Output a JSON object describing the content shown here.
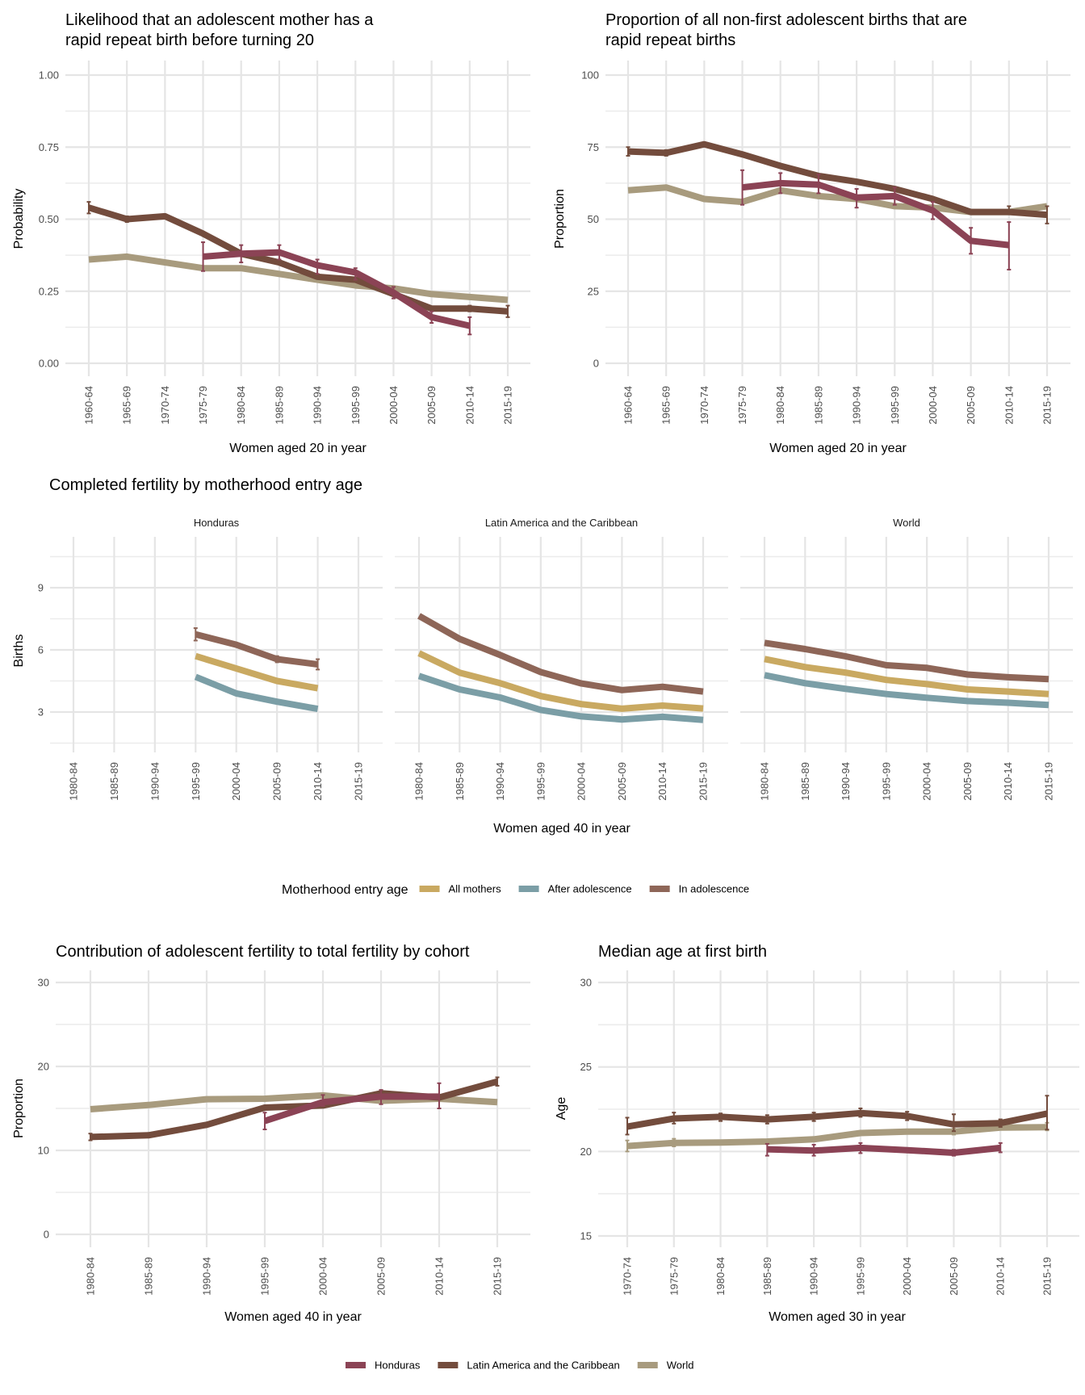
{
  "colors": {
    "Honduras": "#8b4355",
    "Latin America and the Caribbean": "#734c3d",
    "World": "#a89b7e",
    "All mothers": "#c9a961",
    "After adolescence": "#7b9ea6",
    "In adolescence": "#8e6658"
  },
  "legends": {
    "entry_age": {
      "title": "Motherhood entry age",
      "items": [
        "All mothers",
        "After adolescence",
        "In adolescence"
      ]
    },
    "region": {
      "items": [
        "Honduras",
        "Latin America and the Caribbean",
        "World"
      ]
    }
  },
  "chart_data": [
    {
      "id": "rapid-repeat-likelihood",
      "type": "line",
      "title": "Likelihood that an adolescent mother has a rapid repeat birth before turning 20",
      "title_lines": [
        "Likelihood that an adolescent mother has a",
        "rapid repeat birth before turning 20"
      ],
      "xlabel": "Women aged 20 in year",
      "ylabel": "Probability",
      "ylim": [
        0,
        1
      ],
      "yticks": [
        0,
        0.25,
        0.5,
        0.75,
        1
      ],
      "ytick_labels": [
        "0.00",
        "0.25",
        "0.50",
        "0.75",
        "1.00"
      ],
      "grid": true,
      "categories": [
        "1960-64",
        "1965-69",
        "1970-74",
        "1975-79",
        "1980-84",
        "1985-89",
        "1990-94",
        "1995-99",
        "2000-04",
        "2005-09",
        "2010-14",
        "2015-19"
      ],
      "series": [
        {
          "name": "World",
          "values": [
            0.36,
            0.37,
            0.35,
            0.33,
            0.33,
            0.31,
            0.29,
            0.27,
            0.26,
            0.24,
            0.23,
            0.22
          ]
        },
        {
          "name": "Latin America and the Caribbean",
          "values": [
            0.54,
            0.5,
            0.51,
            0.45,
            0.38,
            0.35,
            0.3,
            0.29,
            0.24,
            0.19,
            0.19,
            0.18
          ],
          "errors": [
            [
              0.52,
              0.56
            ],
            [
              0.49,
              0.51
            ],
            null,
            null,
            null,
            null,
            null,
            null,
            null,
            null,
            [
              0.18,
              0.2
            ],
            [
              0.16,
              0.2
            ]
          ]
        },
        {
          "name": "Honduras",
          "values": [
            null,
            null,
            null,
            0.37,
            0.38,
            0.385,
            0.34,
            0.315,
            0.245,
            0.16,
            0.13,
            null
          ],
          "errors": [
            null,
            null,
            null,
            [
              0.32,
              0.42
            ],
            [
              0.35,
              0.41
            ],
            [
              0.36,
              0.41
            ],
            [
              0.31,
              0.36
            ],
            [
              0.29,
              0.33
            ],
            [
              0.225,
              0.265
            ],
            [
              0.14,
              0.18
            ],
            [
              0.1,
              0.16
            ],
            null
          ]
        }
      ]
    },
    {
      "id": "rapid-repeat-proportion",
      "type": "line",
      "title": "Proportion of all non-first adolescent births that are rapid repeat births",
      "title_lines": [
        "Proportion of all non-first adolescent births that are",
        "rapid repeat births"
      ],
      "xlabel": "Women aged 20 in year",
      "ylabel": "Proportion",
      "ylim": [
        0,
        100
      ],
      "yticks": [
        0,
        25,
        50,
        75,
        100
      ],
      "ytick_labels": [
        "0",
        "25",
        "50",
        "75",
        "100"
      ],
      "grid": true,
      "categories": [
        "1960-64",
        "1965-69",
        "1970-74",
        "1975-79",
        "1980-84",
        "1985-89",
        "1990-94",
        "1995-99",
        "2000-04",
        "2005-09",
        "2010-14",
        "2015-19"
      ],
      "series": [
        {
          "name": "World",
          "values": [
            60,
            61,
            57,
            56,
            60,
            58,
            57,
            54.5,
            54,
            52.5,
            52.5,
            54.5
          ]
        },
        {
          "name": "Latin America and the Caribbean",
          "values": [
            73.5,
            73,
            76,
            72.5,
            68.5,
            65,
            63,
            60.5,
            57,
            52.5,
            52.5,
            51.5
          ],
          "errors": [
            [
              72,
              75
            ],
            [
              72,
              74
            ],
            null,
            null,
            null,
            null,
            null,
            null,
            null,
            null,
            [
              52,
              54.5
            ],
            [
              48.5,
              54.5
            ]
          ]
        },
        {
          "name": "Honduras",
          "values": [
            null,
            null,
            null,
            61,
            62.5,
            62,
            57.5,
            58,
            53,
            42.5,
            41,
            null
          ],
          "errors": [
            null,
            null,
            null,
            [
              55,
              67
            ],
            [
              59,
              66
            ],
            [
              59,
              65.5
            ],
            [
              54,
              60.5
            ],
            [
              55,
              61
            ],
            [
              50,
              56
            ],
            [
              38,
              47
            ],
            [
              32.5,
              49
            ],
            null
          ]
        }
      ]
    },
    {
      "id": "completed-fertility",
      "type": "line",
      "title": "Completed fertility by motherhood entry age",
      "xlabel": "Women aged 40 in year",
      "ylabel": "Births",
      "ylim": [
        1.1,
        11.4
      ],
      "yticks": [
        3,
        6,
        9
      ],
      "ytick_labels": [
        "3",
        "6",
        "9"
      ],
      "grid": true,
      "legend": "bottom",
      "categories": [
        "1980-84",
        "1985-89",
        "1990-94",
        "1995-99",
        "2000-04",
        "2005-09",
        "2010-14",
        "2015-19"
      ],
      "facets": [
        {
          "label": "Honduras",
          "series": [
            {
              "name": "In adolescence",
              "values": [
                null,
                null,
                null,
                6.75,
                6.25,
                5.55,
                5.3,
                null
              ],
              "errors": [
                null,
                null,
                null,
                [
                  6.45,
                  7.05
                ],
                null,
                [
                  5.4,
                  5.7
                ],
                [
                  5.05,
                  5.55
                ],
                null
              ]
            },
            {
              "name": "All mothers",
              "values": [
                null,
                null,
                null,
                5.7,
                5.1,
                4.5,
                4.15,
                null
              ]
            },
            {
              "name": "After adolescence",
              "values": [
                null,
                null,
                null,
                4.7,
                3.9,
                3.5,
                3.15,
                null
              ]
            }
          ]
        },
        {
          "label": "Latin America and the Caribbean",
          "series": [
            {
              "name": "In adolescence",
              "values": [
                7.64,
                6.53,
                5.75,
                4.93,
                4.38,
                4.06,
                4.22,
                3.99
              ]
            },
            {
              "name": "All mothers",
              "values": [
                5.84,
                4.9,
                4.39,
                3.77,
                3.38,
                3.16,
                3.31,
                3.17
              ]
            },
            {
              "name": "After adolescence",
              "values": [
                4.74,
                4.09,
                3.7,
                3.1,
                2.79,
                2.64,
                2.77,
                2.62
              ]
            }
          ]
        },
        {
          "label": "World",
          "series": [
            {
              "name": "In adolescence",
              "values": [
                6.34,
                6.04,
                5.69,
                5.26,
                5.13,
                4.81,
                4.68,
                4.59
              ]
            },
            {
              "name": "All mothers",
              "values": [
                5.56,
                5.17,
                4.9,
                4.55,
                4.35,
                4.09,
                3.99,
                3.87
              ]
            },
            {
              "name": "After adolescence",
              "values": [
                4.78,
                4.39,
                4.12,
                3.87,
                3.69,
                3.53,
                3.45,
                3.34
              ]
            }
          ]
        }
      ]
    },
    {
      "id": "adolescent-contribution",
      "type": "line",
      "title": "Contribution of adolescent fertility to total fertility by cohort",
      "xlabel": "Women aged 40 in year",
      "ylabel": "Proportion",
      "ylim": [
        0,
        30
      ],
      "yticks": [
        0,
        10,
        20,
        30
      ],
      "ytick_labels": [
        "0",
        "10",
        "20",
        "30"
      ],
      "grid": true,
      "categories": [
        "1980-84",
        "1985-89",
        "1990-94",
        "1995-99",
        "2000-04",
        "2005-09",
        "2010-14",
        "2015-19"
      ],
      "series": [
        {
          "name": "World",
          "values": [
            14.9,
            15.4,
            16.1,
            16.15,
            16.55,
            15.9,
            16.15,
            15.75
          ]
        },
        {
          "name": "Latin America and the Caribbean",
          "values": [
            11.6,
            11.8,
            13.05,
            15.1,
            15.35,
            16.8,
            16.3,
            18.2
          ],
          "errors": [
            [
              11.2,
              12.0
            ],
            null,
            null,
            null,
            null,
            null,
            null,
            [
              17.7,
              18.7
            ]
          ]
        },
        {
          "name": "Honduras",
          "values": [
            null,
            null,
            null,
            13.5,
            15.75,
            16.4,
            16.4,
            null
          ],
          "errors": [
            null,
            null,
            null,
            [
              12.5,
              14.5
            ],
            [
              15.3,
              16.6
            ],
            [
              15.5,
              17.2
            ],
            [
              15,
              18
            ],
            null
          ]
        }
      ]
    },
    {
      "id": "median-age-first-birth",
      "type": "line",
      "title": "Median age at first birth",
      "xlabel": "Women aged 30 in year",
      "ylabel": "Age",
      "ylim": [
        15,
        30
      ],
      "yticks": [
        15,
        20,
        25,
        30
      ],
      "ytick_labels": [
        "15",
        "20",
        "25",
        "30"
      ],
      "grid": true,
      "legend": "bottom",
      "categories": [
        "1970-74",
        "1975-79",
        "1980-84",
        "1985-89",
        "1990-94",
        "1995-99",
        "2000-04",
        "2005-09",
        "2010-14",
        "2015-19"
      ],
      "series": [
        {
          "name": "World",
          "values": [
            20.32,
            20.51,
            20.53,
            20.59,
            20.72,
            21.09,
            21.17,
            21.17,
            21.41,
            21.44
          ],
          "errors": [
            [
              20.0,
              20.65
            ],
            [
              20.3,
              20.75
            ],
            null,
            null,
            null,
            null,
            null,
            [
              21.0,
              21.35
            ],
            [
              21.3,
              21.55
            ],
            [
              21.25,
              21.7
            ]
          ]
        },
        {
          "name": "Latin America and the Caribbean",
          "values": [
            21.47,
            21.95,
            22.05,
            21.9,
            22.05,
            22.27,
            22.1,
            21.6,
            21.68,
            22.24
          ],
          "errors": [
            [
              21.0,
              22.0
            ],
            [
              21.65,
              22.3
            ],
            [
              21.8,
              22.25
            ],
            [
              21.65,
              22.15
            ],
            [
              21.8,
              22.3
            ],
            [
              22.05,
              22.55
            ],
            [
              21.85,
              22.35
            ],
            [
              21.2,
              22.2
            ],
            [
              21.45,
              21.9
            ],
            [
              21.3,
              23.3
            ]
          ]
        },
        {
          "name": "Honduras",
          "values": [
            null,
            null,
            null,
            20.13,
            20.05,
            20.21,
            20.08,
            19.92,
            20.21,
            null
          ],
          "errors": [
            null,
            null,
            null,
            [
              19.75,
              20.45
            ],
            [
              19.75,
              20.4
            ],
            [
              19.9,
              20.5
            ],
            null,
            [
              19.75,
              20.1
            ],
            [
              19.95,
              20.5
            ],
            null
          ]
        }
      ]
    }
  ]
}
